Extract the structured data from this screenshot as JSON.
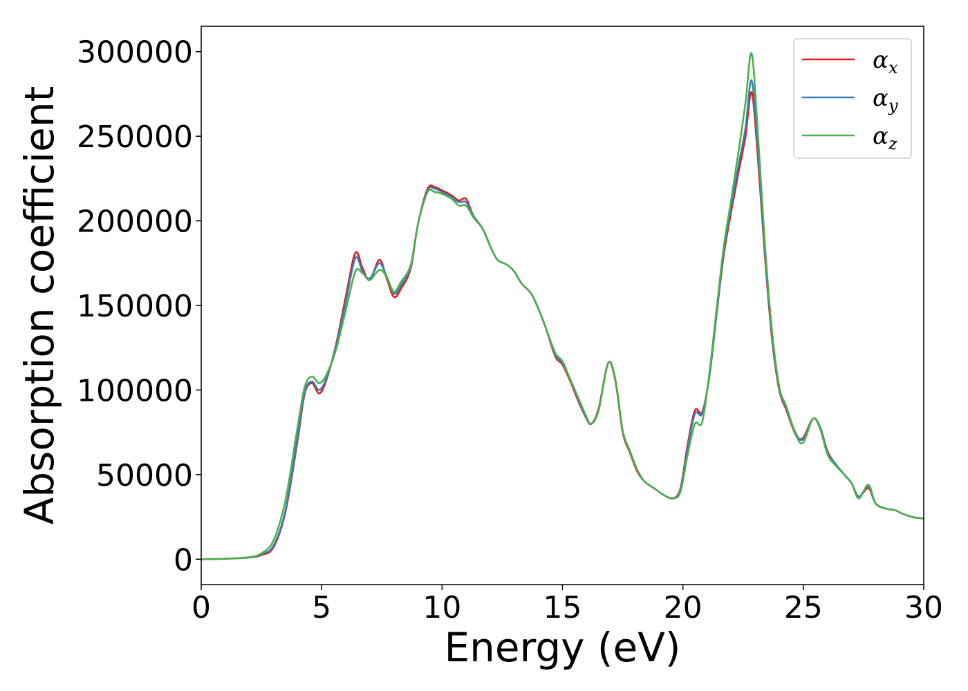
{
  "chart_data": {
    "type": "line",
    "xlabel": "Energy (eV)",
    "ylabel": "Absorption coefficient",
    "xlim": [
      0,
      30
    ],
    "ylim": [
      -15000,
      315000
    ],
    "x_ticks": [
      "0",
      "5",
      "10",
      "15",
      "20",
      "25",
      "30"
    ],
    "y_ticks": [
      "0",
      "50000",
      "100000",
      "150000",
      "200000",
      "250000",
      "300000"
    ],
    "grid": false,
    "legend_position": "top-right",
    "x": [
      0,
      1,
      2,
      2.5,
      3,
      3.5,
      4,
      4.3,
      4.6,
      4.9,
      5.2,
      5.6,
      6.0,
      6.4,
      6.7,
      7.0,
      7.4,
      7.7,
      8.0,
      8.3,
      8.7,
      9.0,
      9.4,
      9.7,
      10.0,
      10.4,
      10.7,
      11.0,
      11.3,
      11.7,
      12.0,
      12.3,
      12.7,
      13.0,
      13.3,
      13.7,
      14.0,
      14.3,
      14.7,
      15.0,
      15.3,
      15.7,
      16.0,
      16.2,
      16.5,
      16.9,
      17.2,
      17.5,
      17.8,
      18.1,
      18.4,
      18.8,
      19.2,
      19.6,
      19.9,
      20.2,
      20.5,
      20.8,
      21.1,
      21.4,
      21.7,
      22.0,
      22.3,
      22.6,
      22.85,
      23.1,
      23.4,
      23.7,
      24.0,
      24.3,
      24.7,
      25.0,
      25.4,
      25.7,
      26.0,
      26.3,
      26.7,
      27.0,
      27.3,
      27.7,
      28.0,
      28.4,
      28.8,
      29.1,
      29.5,
      30.0
    ],
    "series": [
      {
        "name": "α",
        "subscript": "x",
        "color": "#e41a1c",
        "values": [
          0,
          300,
          1000,
          2500,
          7000,
          28000,
          70000,
          98000,
          104000,
          98000,
          106000,
          127000,
          155000,
          181000,
          172000,
          165000,
          177000,
          166000,
          155000,
          160000,
          172000,
          198000,
          219000,
          220000,
          218000,
          215000,
          212000,
          213000,
          203000,
          195000,
          185000,
          177000,
          174000,
          170000,
          163000,
          157000,
          148000,
          137000,
          120000,
          115000,
          106000,
          92000,
          83000,
          80000,
          89000,
          116000,
          105000,
          75000,
          63000,
          52000,
          46000,
          42000,
          38000,
          36000,
          42000,
          68000,
          88000,
          87000,
          108000,
          145000,
          180000,
          205000,
          228000,
          250000,
          276000,
          240000,
          180000,
          130000,
          100000,
          88000,
          73000,
          72000,
          83000,
          78000,
          64000,
          57000,
          50000,
          45000,
          37000,
          42000,
          33000,
          30000,
          29000,
          27000,
          25000,
          24000
        ]
      },
      {
        "name": "α",
        "subscript": "y",
        "color": "#377eb8",
        "values": [
          0,
          300,
          1000,
          3000,
          8000,
          29000,
          72000,
          99000,
          105000,
          100000,
          107000,
          126000,
          152000,
          178000,
          170000,
          166000,
          175000,
          167000,
          157000,
          162000,
          173000,
          198000,
          218000,
          219000,
          217000,
          214000,
          211000,
          211000,
          203000,
          195000,
          185000,
          177000,
          174000,
          170000,
          163000,
          157000,
          148000,
          137000,
          121000,
          116000,
          107000,
          93000,
          83000,
          80000,
          88000,
          116000,
          106000,
          76000,
          64000,
          53000,
          46000,
          42000,
          38000,
          36000,
          41000,
          66000,
          86000,
          86000,
          108000,
          145000,
          182000,
          208000,
          232000,
          255000,
          283000,
          245000,
          183000,
          132000,
          101000,
          89000,
          74000,
          71000,
          83000,
          78000,
          63000,
          57000,
          50000,
          45000,
          37000,
          43000,
          33000,
          30000,
          29000,
          27000,
          25000,
          24000
        ]
      },
      {
        "name": "α",
        "subscript": "z",
        "color": "#4daf4a",
        "values": [
          0,
          300,
          1200,
          3500,
          11000,
          35000,
          78000,
          102000,
          108000,
          104000,
          109000,
          124000,
          147000,
          170000,
          169000,
          165000,
          171000,
          167000,
          158000,
          164000,
          174000,
          198000,
          217000,
          217000,
          216000,
          213000,
          209000,
          209000,
          202000,
          195000,
          185000,
          177000,
          174000,
          170000,
          163000,
          157000,
          148000,
          137000,
          122000,
          117000,
          107000,
          94000,
          84000,
          80000,
          88000,
          116000,
          106000,
          76000,
          64000,
          53000,
          46000,
          42000,
          38000,
          36000,
          40000,
          62000,
          80000,
          81000,
          110000,
          148000,
          185000,
          212000,
          240000,
          270000,
          299000,
          255000,
          187000,
          135000,
          102000,
          90000,
          73000,
          69000,
          83000,
          77000,
          62000,
          56000,
          50000,
          45000,
          36000,
          44000,
          33000,
          30000,
          29000,
          27000,
          25000,
          24000
        ]
      }
    ]
  }
}
